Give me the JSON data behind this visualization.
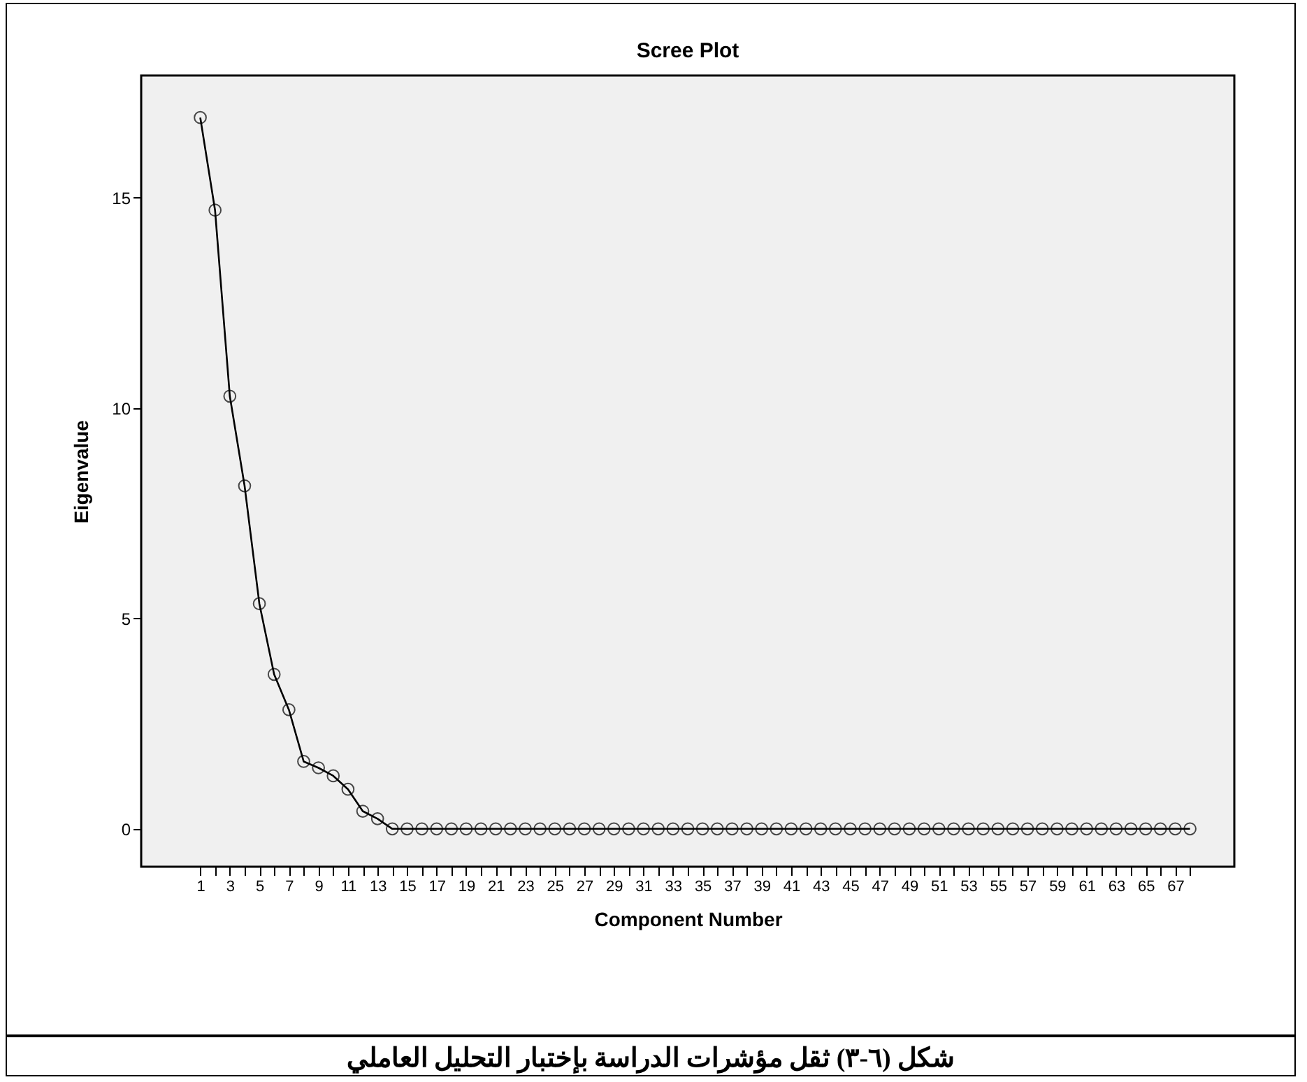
{
  "chart_data": {
    "type": "line",
    "title": "Scree Plot",
    "xlabel": "Component Number",
    "ylabel": "Eigenvalue",
    "x": [
      1,
      2,
      3,
      4,
      5,
      6,
      7,
      8,
      9,
      10,
      11,
      12,
      13,
      14,
      15,
      16,
      17,
      18,
      19,
      20,
      21,
      22,
      23,
      24,
      25,
      26,
      27,
      28,
      29,
      30,
      31,
      32,
      33,
      34,
      35,
      36,
      37,
      38,
      39,
      40,
      41,
      42,
      43,
      44,
      45,
      46,
      47,
      48,
      49,
      50,
      51,
      52,
      53,
      54,
      55,
      56,
      57,
      58,
      59,
      60,
      61,
      62,
      63,
      64,
      65,
      66,
      67,
      68
    ],
    "series": [
      {
        "color": "#000000",
        "values": [
          16.9,
          14.7,
          10.28,
          8.15,
          5.35,
          3.67,
          2.83,
          1.6,
          1.45,
          1.26,
          0.94,
          0.42,
          0.24,
          0,
          0,
          0,
          0,
          0,
          0,
          0,
          0,
          0,
          0,
          0,
          0,
          0,
          0,
          0,
          0,
          0,
          0,
          0,
          0,
          0,
          0,
          0,
          0,
          0,
          0,
          0,
          0,
          0,
          0,
          0,
          0,
          0,
          0,
          0,
          0,
          0,
          0,
          0,
          0,
          0,
          0,
          0,
          0,
          0,
          0,
          0,
          0,
          0,
          0,
          0,
          0,
          0,
          0,
          0
        ]
      }
    ],
    "xlim": [
      -3,
      71
    ],
    "xticks": [
      1,
      {
        "value": 2,
        "label": null
      },
      3,
      {
        "value": 4,
        "label": null
      },
      5,
      {
        "value": 6,
        "label": null
      },
      7,
      {
        "value": 8,
        "label": null
      },
      9,
      {
        "value": 10,
        "label": null
      },
      11,
      {
        "value": 12,
        "label": null
      },
      13,
      {
        "value": 14,
        "label": null
      },
      15,
      {
        "value": 16,
        "label": null
      },
      17,
      {
        "value": 18,
        "label": null
      },
      19,
      {
        "value": 20,
        "label": null
      },
      21,
      {
        "value": 22,
        "label": null
      },
      23,
      {
        "value": 24,
        "label": null
      },
      25,
      {
        "value": 26,
        "label": null
      },
      27,
      {
        "value": 28,
        "label": null
      },
      29,
      {
        "value": 30,
        "label": null
      },
      31,
      {
        "value": 32,
        "label": null
      },
      33,
      {
        "value": 34,
        "label": null
      },
      35,
      {
        "value": 36,
        "label": null
      },
      37,
      {
        "value": 38,
        "label": null
      },
      39,
      {
        "value": 40,
        "label": null
      },
      41,
      {
        "value": 42,
        "label": null
      },
      43,
      {
        "value": 44,
        "label": null
      },
      45,
      {
        "value": 46,
        "label": null
      },
      47,
      {
        "value": 48,
        "label": null
      },
      49,
      {
        "value": 50,
        "label": null
      },
      51,
      {
        "value": 52,
        "label": null
      },
      53,
      {
        "value": 54,
        "label": null
      },
      55,
      {
        "value": 56,
        "label": null
      },
      57,
      {
        "value": 58,
        "label": null
      },
      59,
      {
        "value": 60,
        "label": null
      },
      61,
      {
        "value": 62,
        "label": null
      },
      63,
      {
        "value": 64,
        "label": null
      },
      65,
      {
        "value": 66,
        "label": null
      },
      67,
      {
        "value": 68,
        "label": null
      }
    ],
    "ylim": [
      -0.9,
      17.9
    ],
    "yticks": [
      0,
      5,
      10,
      15
    ],
    "grid": false,
    "marker": "circle",
    "line_style": "solid",
    "annotations": [
      "شكل (٦-٣) ثقل مؤشرات الدراسة بإختبار التحليل العاملي"
    ]
  }
}
